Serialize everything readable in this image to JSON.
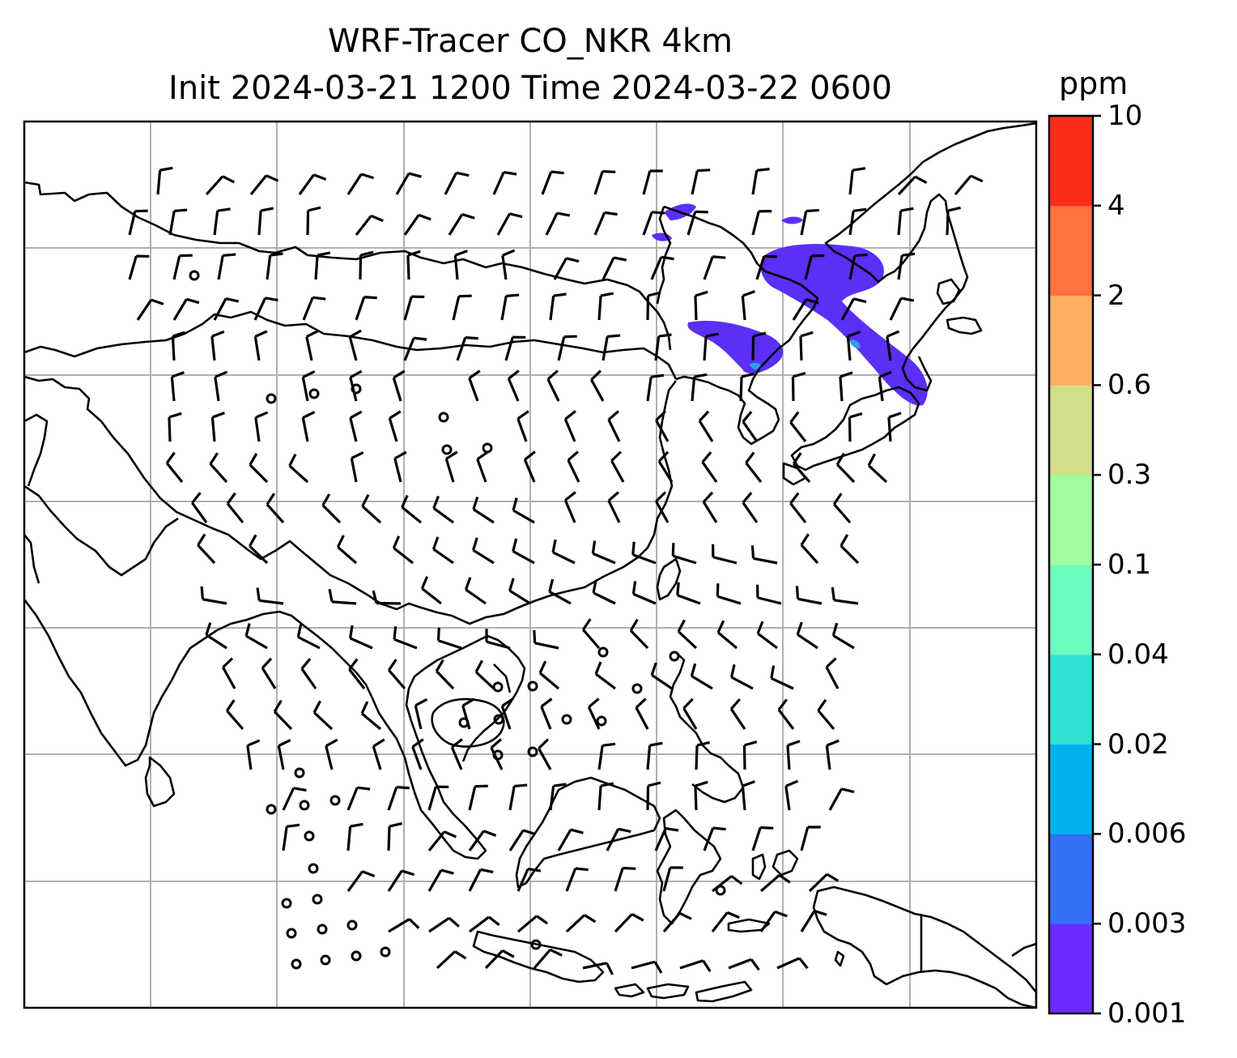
{
  "title": {
    "line1": "WRF-Tracer CO_NKR 4km",
    "line2": "Init 2024-03-21 1200 Time 2024-03-22 0600"
  },
  "colorbar": {
    "unit": "ppm",
    "levels": [
      "0.001",
      "0.003",
      "0.006",
      "0.02",
      "0.04",
      "0.1",
      "0.3",
      "0.6",
      "2",
      "4",
      "10"
    ],
    "colors": [
      "#6a2cff",
      "#3270f5",
      "#00b0ec",
      "#30e0d4",
      "#6cfcc0",
      "#a2fca0",
      "#d0e088",
      "#feb060",
      "#ff7340",
      "#ff2c1c"
    ]
  },
  "map": {
    "gridlines": true,
    "plume_color": "#5b2ff5",
    "plume_inner_color": "#2aa0e8"
  }
}
